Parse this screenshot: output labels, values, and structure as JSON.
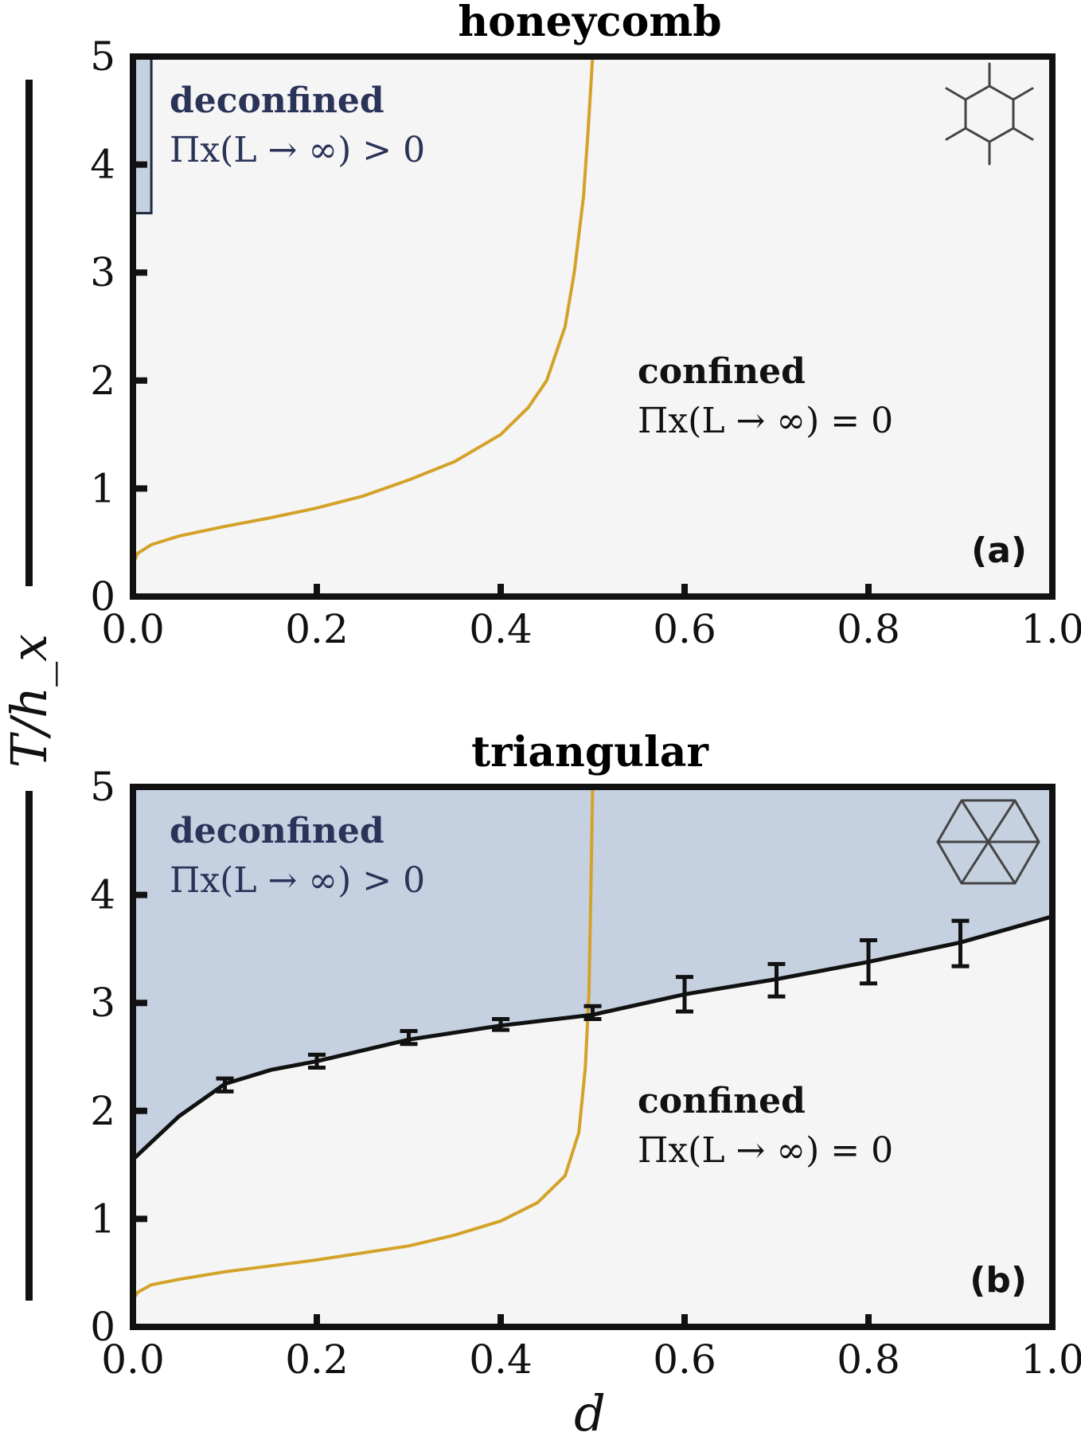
{
  "shared_ylabel": "T/h_x",
  "shared_xlabel": "d",
  "colors": {
    "background": "#f5f5f5",
    "deconfined_fill": "#c5d1e0",
    "gold_curve": "#d4a229",
    "boundary": "#111111",
    "region_text": "#2a3358",
    "lattice_icon": "#444444"
  },
  "chart_data": [
    {
      "type": "line",
      "panel_label": "(a)",
      "title": "honeycomb",
      "lattice_icon": "honeycomb-lattice-icon",
      "xlim": [
        0,
        1
      ],
      "ylim": [
        0,
        5
      ],
      "x_ticks": [
        "0.0",
        "0.2",
        "0.4",
        "0.6",
        "0.8",
        "1.0"
      ],
      "y_ticks": [
        "0",
        "1",
        "2",
        "3",
        "4",
        "5"
      ],
      "regions": {
        "deconfined": {
          "name": "deconfined",
          "condition": "Πx(L → ∞) > 0"
        },
        "confined": {
          "name": "confined",
          "condition": "Πx(L → ∞) = 0"
        }
      },
      "deconfined_region": {
        "x": [
          0,
          0.02
        ],
        "y": [
          3.55,
          5
        ]
      },
      "series": [
        {
          "kind": "gold_curve",
          "x": [
            0.0,
            0.005,
            0.02,
            0.05,
            0.1,
            0.15,
            0.2,
            0.25,
            0.3,
            0.35,
            0.4,
            0.43,
            0.45,
            0.47,
            0.48,
            0.49,
            0.495,
            0.5
          ],
          "y": [
            0.3,
            0.4,
            0.48,
            0.56,
            0.65,
            0.73,
            0.82,
            0.93,
            1.08,
            1.25,
            1.5,
            1.75,
            2.0,
            2.5,
            3.0,
            3.7,
            4.3,
            5.0
          ]
        }
      ]
    },
    {
      "type": "line",
      "panel_label": "(b)",
      "title": "triangular",
      "lattice_icon": "triangular-lattice-icon",
      "xlim": [
        0,
        1
      ],
      "ylim": [
        0,
        5
      ],
      "x_ticks": [
        "0.0",
        "0.2",
        "0.4",
        "0.6",
        "0.8",
        "1.0"
      ],
      "y_ticks": [
        "0",
        "1",
        "2",
        "3",
        "4",
        "5"
      ],
      "regions": {
        "deconfined": {
          "name": "deconfined",
          "condition": "Πx(L → ∞) > 0"
        },
        "confined": {
          "name": "confined",
          "condition": "Πx(L → ∞) = 0"
        }
      },
      "series": [
        {
          "kind": "gold_curve",
          "x": [
            0.0,
            0.005,
            0.02,
            0.05,
            0.1,
            0.2,
            0.3,
            0.35,
            0.4,
            0.44,
            0.47,
            0.485,
            0.492,
            0.496,
            0.498,
            0.5
          ],
          "y": [
            0.25,
            0.32,
            0.39,
            0.44,
            0.51,
            0.62,
            0.75,
            0.85,
            0.98,
            1.15,
            1.4,
            1.8,
            2.4,
            3.1,
            4.0,
            5.0
          ]
        },
        {
          "kind": "boundary_fit",
          "x": [
            0.0,
            0.05,
            0.1,
            0.15,
            0.2,
            0.3,
            0.4,
            0.5,
            0.6,
            0.7,
            0.8,
            0.9,
            1.0
          ],
          "y": [
            1.55,
            1.95,
            2.25,
            2.38,
            2.46,
            2.66,
            2.79,
            2.89,
            3.08,
            3.22,
            3.38,
            3.56,
            3.8
          ]
        },
        {
          "kind": "error_bars",
          "x": [
            0.1,
            0.2,
            0.3,
            0.4,
            0.5,
            0.6,
            0.7,
            0.8,
            0.9
          ],
          "y": [
            2.24,
            2.46,
            2.68,
            2.8,
            2.91,
            3.08,
            3.21,
            3.38,
            3.55
          ],
          "err": [
            0.06,
            0.06,
            0.06,
            0.05,
            0.06,
            0.16,
            0.15,
            0.2,
            0.21
          ]
        }
      ]
    }
  ]
}
